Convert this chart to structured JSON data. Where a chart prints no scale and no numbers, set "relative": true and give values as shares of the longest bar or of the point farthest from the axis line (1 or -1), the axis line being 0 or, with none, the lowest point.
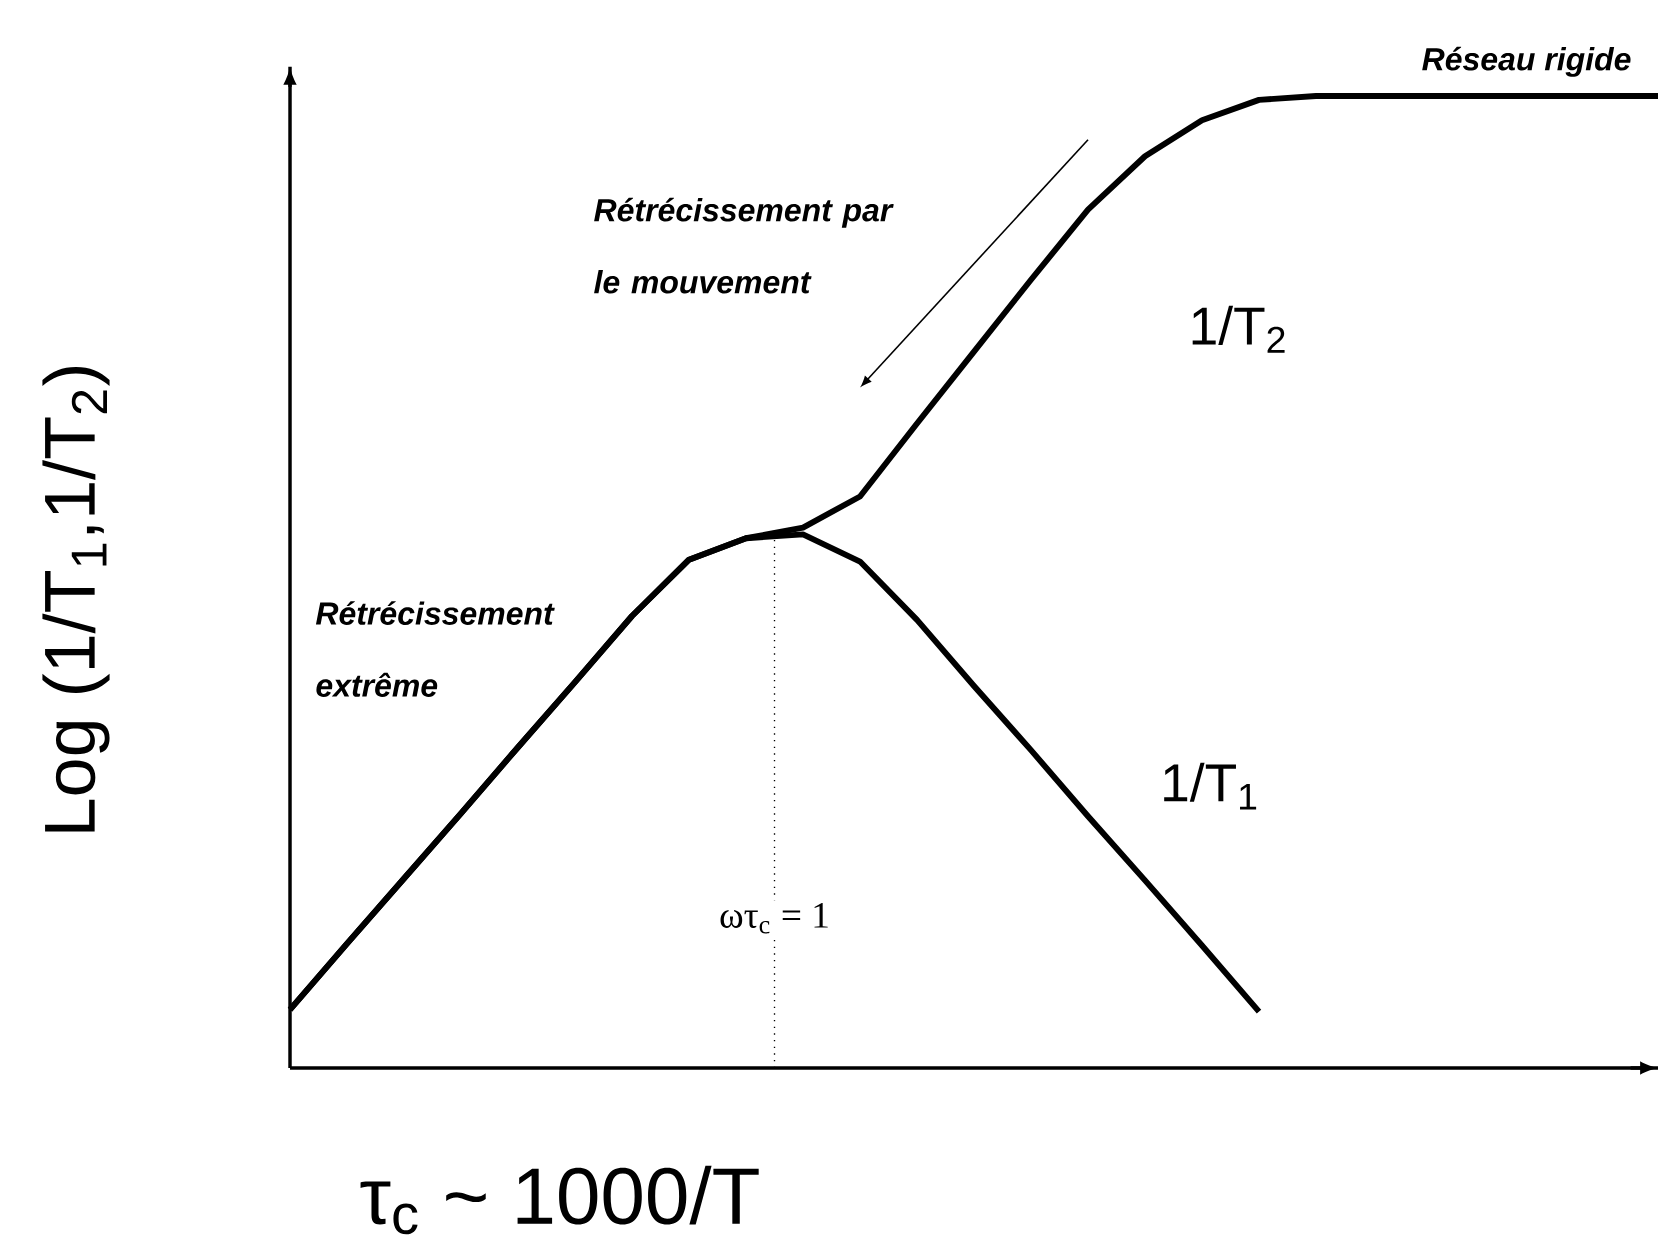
{
  "chart_data": {
    "type": "line",
    "relative": true,
    "xlabel": "τ$_{c}$ ~ 1000/T",
    "ylabel": "Log (1/T$_{1}$,1/T$_{2}$)",
    "legend": false,
    "marker": "none",
    "line_style": "solid",
    "categories": [
      null,
      null,
      null,
      null,
      null,
      null,
      null,
      null,
      null,
      null,
      null,
      null,
      null,
      null,
      null,
      null,
      null,
      null,
      null,
      null,
      null,
      null,
      null,
      null,
      null
    ],
    "series": [
      {
        "name": "1/T$_{2}$",
        "color": "#000000",
        "values": [
          0.06,
          0.128,
          0.195,
          0.262,
          0.33,
          0.397,
          0.465,
          0.523,
          0.545,
          0.556,
          0.588,
          0.663,
          0.737,
          0.811,
          0.883,
          0.938,
          0.975,
          0.996,
          1,
          1,
          1,
          1,
          1,
          1,
          1
        ]
      },
      {
        "name": "1/T$_{1}$",
        "color": "#000000",
        "values": [
          0.06,
          0.128,
          0.195,
          0.262,
          0.33,
          0.397,
          0.465,
          0.523,
          0.545,
          0.549,
          0.521,
          0.461,
          0.393,
          0.327,
          0.259,
          0.193,
          0.126,
          0.058,
          null,
          null,
          null,
          null,
          null,
          null,
          null
        ]
      }
    ],
    "annotations": [
      "Rétrécissement par le mouvement",
      "Rétrécissement extrême",
      "Réseau rigide",
      "ωτ$_{c}$ = 1"
    ]
  }
}
